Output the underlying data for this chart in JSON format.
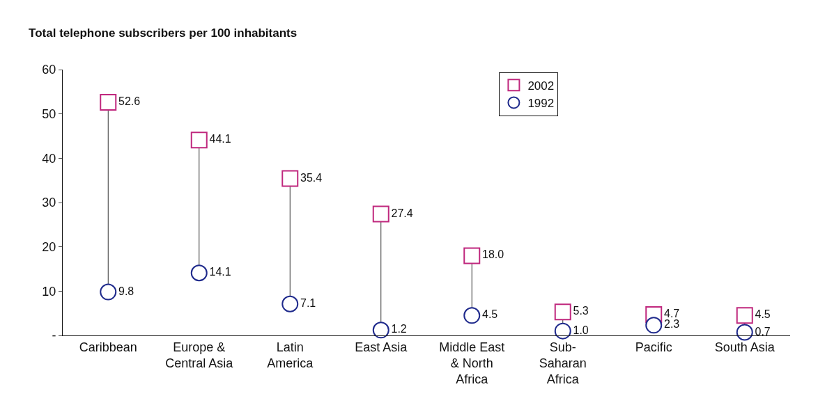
{
  "chart_data": {
    "type": "scatter",
    "title": "Total telephone subscribers per 100 inhabitants",
    "categories": [
      "Caribbean",
      "Europe &\nCentral Asia",
      "Latin\nAmerica",
      "East Asia",
      "Middle East\n& North\nAfrica",
      "Sub-\nSaharan\nAfrica",
      "Pacific",
      "South Asia"
    ],
    "series": [
      {
        "name": "2002",
        "color": "#c0287e",
        "marker": "square",
        "values": [
          52.6,
          44.1,
          35.4,
          27.4,
          18.0,
          5.3,
          4.7,
          4.5
        ],
        "value_labels": [
          "52.6",
          "44.1",
          "35.4",
          "27.4",
          "18.0",
          "5.3",
          "4.7",
          "4.5"
        ]
      },
      {
        "name": "1992",
        "color": "#1f2a8c",
        "marker": "circle",
        "values": [
          9.8,
          14.1,
          7.1,
          1.2,
          4.5,
          1.0,
          2.3,
          0.7
        ],
        "value_labels": [
          "9.8",
          "14.1",
          "7.1",
          "1.2",
          "4.5",
          "1.0",
          "2.3",
          "0.7"
        ]
      }
    ],
    "ylim": [
      0,
      60
    ],
    "yticks": [
      {
        "value": 0,
        "label": "-"
      },
      10,
      20,
      30,
      40,
      50,
      60
    ],
    "legend": "top right"
  }
}
